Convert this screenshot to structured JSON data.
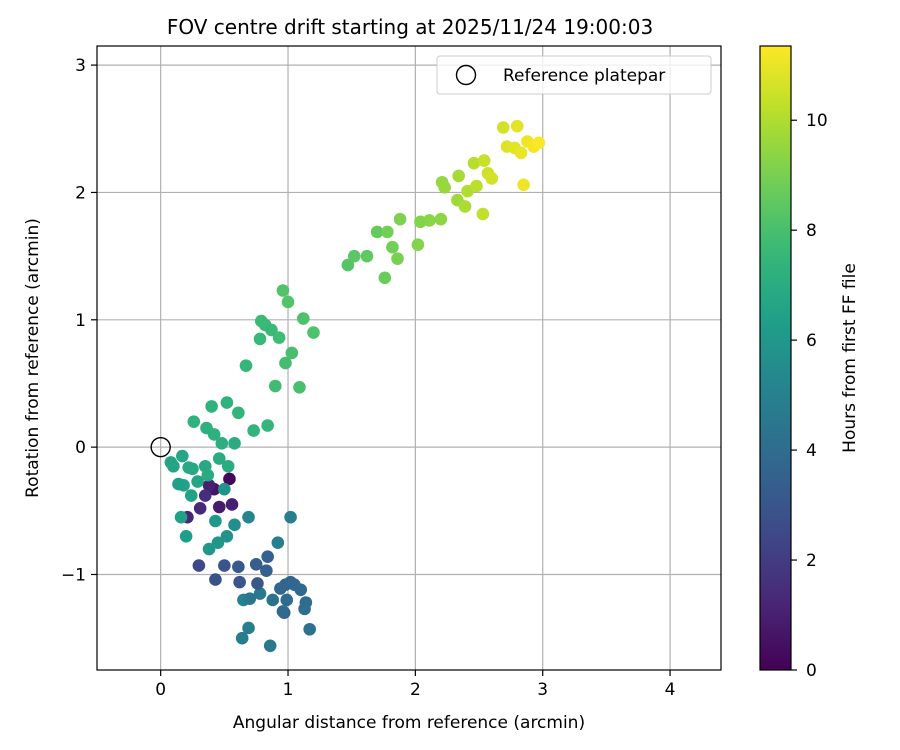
{
  "chart_data": {
    "type": "scatter",
    "title": "FOV centre drift starting at 2025/11/24 19:00:03",
    "xlabel": "Angular distance from reference (arcmin)",
    "ylabel": "Rotation from reference (arcmin)",
    "xlim": [
      -0.5,
      4.4
    ],
    "ylim": [
      -1.75,
      3.15
    ],
    "x_ticks": [
      0,
      1,
      2,
      3,
      4
    ],
    "y_ticks": [
      -1,
      0,
      1,
      2,
      3
    ],
    "grid": true,
    "colormap": "viridis",
    "colorbar": {
      "label": "Hours from first FF file",
      "min": 0,
      "max": 11.35,
      "ticks": [
        0,
        2,
        4,
        6,
        8,
        10
      ]
    },
    "reference": {
      "label": "Reference platepar",
      "x": 0,
      "y": 0,
      "marker": "open-circle"
    },
    "legend_position": "top-right",
    "points": [
      [
        0.54,
        -0.25,
        0.2
      ],
      [
        0.46,
        -0.47,
        0.8
      ],
      [
        0.56,
        -0.45,
        1.0
      ],
      [
        0.42,
        -0.33,
        0.6
      ],
      [
        0.38,
        -0.3,
        1.0
      ],
      [
        0.21,
        -0.55,
        1.2
      ],
      [
        0.31,
        -0.48,
        1.3
      ],
      [
        0.35,
        -0.38,
        1.5
      ],
      [
        0.3,
        -0.93,
        2.5
      ],
      [
        0.43,
        -1.04,
        2.8
      ],
      [
        0.62,
        -1.06,
        3.0
      ],
      [
        0.75,
        -0.92,
        3.3
      ],
      [
        0.84,
        -0.86,
        3.5
      ],
      [
        0.98,
        -1.08,
        3.6
      ],
      [
        0.97,
        -1.3,
        3.4
      ],
      [
        1.05,
        -1.08,
        4.0
      ],
      [
        1.1,
        -1.12,
        3.8
      ],
      [
        1.14,
        -1.22,
        4.0
      ],
      [
        1.13,
        -1.27,
        4.1
      ],
      [
        1.17,
        -1.43,
        4.2
      ],
      [
        0.86,
        -1.56,
        4.5
      ],
      [
        0.64,
        -1.5,
        4.7
      ],
      [
        0.69,
        -1.42,
        4.9
      ],
      [
        0.65,
        -1.2,
        5.0
      ],
      [
        0.78,
        -1.15,
        4.6
      ],
      [
        0.92,
        -0.75,
        4.8
      ],
      [
        1.02,
        -0.55,
        4.9
      ],
      [
        0.69,
        -0.55,
        5.2
      ],
      [
        0.58,
        -0.61,
        5.6
      ],
      [
        0.52,
        -0.7,
        5.8
      ],
      [
        0.45,
        -0.75,
        6.0
      ],
      [
        0.38,
        -0.8,
        6.0
      ],
      [
        0.43,
        -0.58,
        6.1
      ],
      [
        0.2,
        -0.7,
        6.3
      ],
      [
        0.16,
        -0.55,
        6.4
      ],
      [
        0.24,
        -0.38,
        6.5
      ],
      [
        0.18,
        -0.3,
        6.5
      ],
      [
        0.1,
        -0.15,
        6.6
      ],
      [
        0.17,
        -0.07,
        6.7
      ],
      [
        0.25,
        -0.17,
        6.8
      ],
      [
        0.35,
        -0.15,
        6.8
      ],
      [
        0.37,
        -0.22,
        6.9
      ],
      [
        0.46,
        -0.09,
        7.0
      ],
      [
        0.53,
        -0.15,
        7.0
      ],
      [
        0.48,
        0.03,
        7.1
      ],
      [
        0.36,
        0.15,
        7.2
      ],
      [
        0.42,
        0.1,
        7.2
      ],
      [
        0.26,
        0.2,
        7.3
      ],
      [
        0.4,
        0.32,
        7.3
      ],
      [
        0.52,
        0.35,
        7.3
      ],
      [
        0.61,
        0.27,
        7.4
      ],
      [
        0.73,
        0.13,
        7.4
      ],
      [
        0.84,
        0.17,
        7.5
      ],
      [
        0.67,
        0.64,
        7.5
      ],
      [
        0.78,
        0.85,
        7.6
      ],
      [
        0.87,
        0.92,
        7.7
      ],
      [
        0.82,
        0.96,
        7.6
      ],
      [
        0.9,
        0.48,
        7.8
      ],
      [
        0.98,
        0.66,
        7.9
      ],
      [
        1.03,
        0.74,
        8.0
      ],
      [
        1.09,
        0.47,
        8.0
      ],
      [
        1.12,
        1.01,
        8.1
      ],
      [
        0.96,
        1.23,
        8.2
      ],
      [
        1.0,
        1.14,
        8.2
      ],
      [
        1.2,
        0.9,
        8.1
      ],
      [
        1.47,
        1.43,
        8.3
      ],
      [
        1.62,
        1.5,
        8.5
      ],
      [
        1.7,
        1.69,
        8.6
      ],
      [
        1.76,
        1.33,
        8.7
      ],
      [
        1.78,
        1.69,
        8.9
      ],
      [
        1.82,
        1.57,
        8.9
      ],
      [
        1.86,
        1.48,
        9.0
      ],
      [
        1.88,
        1.79,
        9.1
      ],
      [
        2.02,
        1.59,
        9.2
      ],
      [
        2.04,
        1.77,
        9.2
      ],
      [
        2.11,
        1.78,
        9.3
      ],
      [
        2.2,
        1.79,
        9.4
      ],
      [
        2.21,
        2.08,
        9.5
      ],
      [
        2.23,
        2.04,
        9.6
      ],
      [
        2.33,
        1.94,
        9.7
      ],
      [
        2.34,
        2.13,
        9.8
      ],
      [
        2.39,
        1.89,
        9.9
      ],
      [
        2.41,
        2.01,
        10.0
      ],
      [
        2.46,
        2.23,
        10.1
      ],
      [
        2.48,
        2.05,
        10.2
      ],
      [
        2.53,
        1.83,
        10.3
      ],
      [
        2.54,
        2.25,
        10.4
      ],
      [
        2.57,
        2.15,
        10.5
      ],
      [
        2.6,
        2.11,
        10.6
      ],
      [
        2.69,
        2.51,
        10.6
      ],
      [
        2.72,
        2.36,
        10.8
      ],
      [
        2.78,
        2.35,
        10.9
      ],
      [
        2.8,
        2.52,
        10.9
      ],
      [
        2.83,
        2.31,
        11.0
      ],
      [
        2.85,
        2.06,
        11.1
      ],
      [
        2.88,
        2.4,
        11.1
      ],
      [
        2.93,
        2.36,
        11.2
      ],
      [
        2.97,
        2.39,
        11.3
      ],
      [
        1.52,
        1.5,
        8.4
      ],
      [
        0.79,
        0.99,
        7.7
      ],
      [
        0.93,
        0.86,
        7.8
      ],
      [
        0.58,
        0.03,
        7.0
      ],
      [
        0.08,
        -0.12,
        6.6
      ],
      [
        0.14,
        -0.29,
        6.4
      ],
      [
        0.29,
        -0.27,
        6.6
      ],
      [
        0.22,
        -0.16,
        6.8
      ],
      [
        0.5,
        -0.33,
        5.9
      ],
      [
        0.7,
        -1.19,
        4.4
      ],
      [
        0.99,
        -1.2,
        3.9
      ],
      [
        0.94,
        -1.11,
        3.7
      ],
      [
        0.83,
        -0.97,
        3.4
      ],
      [
        0.61,
        -0.94,
        3.2
      ],
      [
        0.76,
        -1.07,
        3.1
      ],
      [
        0.5,
        -0.93,
        3.0
      ],
      [
        1.02,
        -1.06,
        3.7
      ],
      [
        0.88,
        -1.2,
        4.3
      ],
      [
        0.96,
        -1.29,
        3.9
      ]
    ]
  }
}
